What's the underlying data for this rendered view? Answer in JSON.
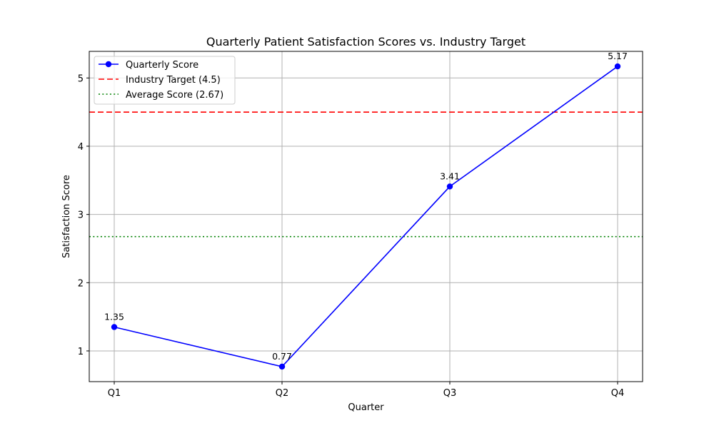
{
  "chart_data": {
    "type": "line",
    "title": "Quarterly Patient Satisfaction Scores vs. Industry Target",
    "xlabel": "Quarter",
    "ylabel": "Satisfaction Score",
    "categories": [
      "Q1",
      "Q2",
      "Q3",
      "Q4"
    ],
    "series": [
      {
        "name": "Quarterly Score",
        "values": [
          1.35,
          0.77,
          3.41,
          5.17
        ],
        "color": "#0000ff",
        "marker": "circle",
        "data_labels": [
          "1.35",
          "0.77",
          "3.41",
          "5.17"
        ]
      }
    ],
    "reference_lines": [
      {
        "name": "Industry Target (4.5)",
        "value": 4.5,
        "color": "#ff0000",
        "style": "dashed"
      },
      {
        "name": "Average Score (2.67)",
        "value": 2.675,
        "color": "#008000",
        "style": "dotted"
      }
    ],
    "ylim": [
      0.55,
      5.39
    ],
    "yticks": [
      1,
      2,
      3,
      4,
      5
    ],
    "grid": true,
    "legend_position": "top-left"
  }
}
